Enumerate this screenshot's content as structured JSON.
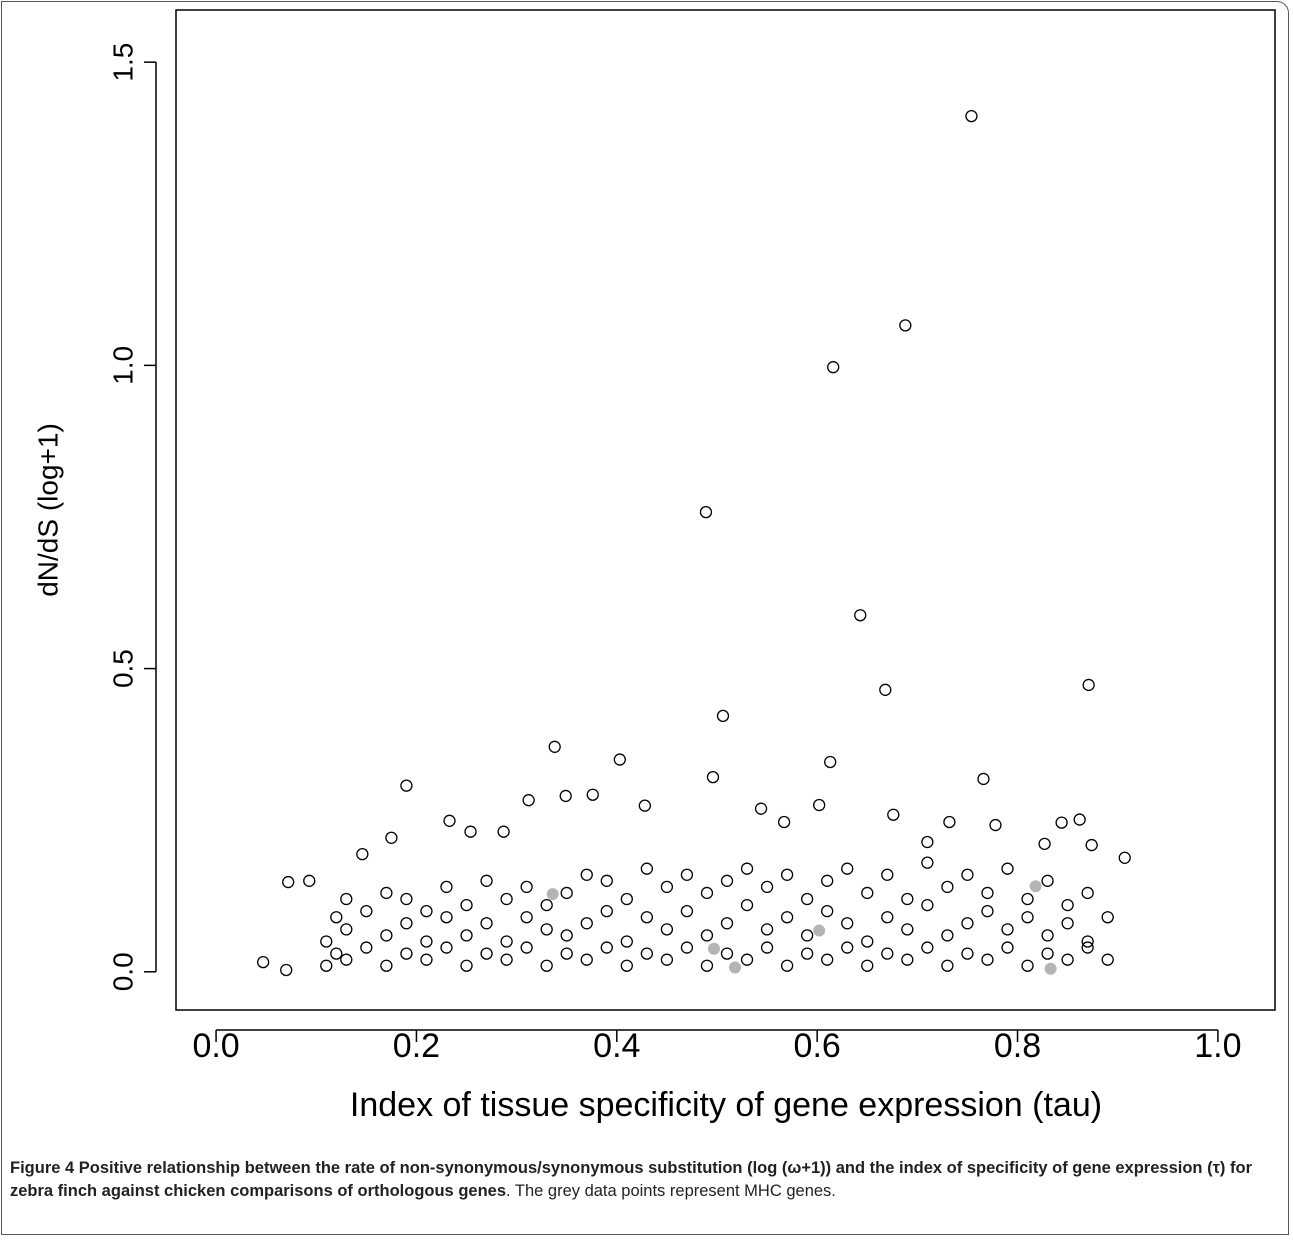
{
  "chart_data": {
    "type": "scatter",
    "xlabel": "Index of tissue specificity of gene expression (tau)",
    "ylabel": "dN/dS (log+1)",
    "xlim": [
      -0.04,
      1.057
    ],
    "ylim": [
      -0.063,
      1.586
    ],
    "xticks": [
      {
        "value": 0,
        "label": "0.0"
      },
      0.2,
      0.4,
      0.6,
      0.8,
      {
        "value": 1,
        "label": "1.0"
      }
    ],
    "yticks": [
      {
        "value": 0,
        "label": "0.0"
      },
      0.5,
      {
        "value": 1,
        "label": "1.0"
      },
      1.5
    ],
    "series": [
      {
        "color": "#000000",
        "filled": false,
        "x": [
          0.754,
          0.688,
          0.616,
          0.489,
          0.643,
          0.668,
          0.871,
          0.506,
          0.338,
          0.403,
          0.613,
          0.19,
          0.496,
          0.766,
          0.312,
          0.349,
          0.602,
          0.544,
          0.676,
          0.732,
          0.844,
          0.907,
          0.827,
          0.233,
          0.254,
          0.287,
          0.175,
          0.146,
          0.072,
          0.047,
          0.07,
          0.093,
          0.874,
          0.862,
          0.778,
          0.71,
          0.567,
          0.428,
          0.376,
          0.11,
          0.11,
          0.12,
          0.12,
          0.13,
          0.13,
          0.13,
          0.15,
          0.15,
          0.17,
          0.17,
          0.17,
          0.19,
          0.19,
          0.19,
          0.21,
          0.21,
          0.21,
          0.23,
          0.23,
          0.23,
          0.25,
          0.25,
          0.25,
          0.27,
          0.27,
          0.27,
          0.29,
          0.29,
          0.29,
          0.31,
          0.31,
          0.31,
          0.33,
          0.33,
          0.33,
          0.35,
          0.35,
          0.35,
          0.37,
          0.37,
          0.37,
          0.39,
          0.39,
          0.39,
          0.41,
          0.41,
          0.41,
          0.43,
          0.43,
          0.43,
          0.45,
          0.45,
          0.45,
          0.47,
          0.47,
          0.47,
          0.49,
          0.49,
          0.49,
          0.51,
          0.51,
          0.51,
          0.53,
          0.53,
          0.53,
          0.55,
          0.55,
          0.55,
          0.57,
          0.57,
          0.57,
          0.59,
          0.59,
          0.59,
          0.61,
          0.61,
          0.61,
          0.63,
          0.63,
          0.63,
          0.65,
          0.65,
          0.65,
          0.67,
          0.67,
          0.67,
          0.69,
          0.69,
          0.69,
          0.71,
          0.71,
          0.71,
          0.73,
          0.73,
          0.73,
          0.75,
          0.75,
          0.75,
          0.77,
          0.77,
          0.77,
          0.79,
          0.79,
          0.79,
          0.81,
          0.81,
          0.81,
          0.83,
          0.83,
          0.83,
          0.85,
          0.85,
          0.85,
          0.87,
          0.87,
          0.87,
          0.89,
          0.89
        ],
        "values": [
          1.411,
          1.066,
          0.997,
          0.758,
          0.588,
          0.465,
          0.473,
          0.422,
          0.371,
          0.35,
          0.346,
          0.307,
          0.321,
          0.318,
          0.283,
          0.29,
          0.275,
          0.269,
          0.259,
          0.247,
          0.246,
          0.188,
          0.211,
          0.249,
          0.231,
          0.231,
          0.221,
          0.194,
          0.148,
          0.016,
          0.003,
          0.15,
          0.209,
          0.251,
          0.242,
          0.214,
          0.247,
          0.274,
          0.292,
          0.01,
          0.05,
          0.03,
          0.09,
          0.02,
          0.07,
          0.12,
          0.04,
          0.1,
          0.01,
          0.06,
          0.13,
          0.03,
          0.08,
          0.12,
          0.02,
          0.05,
          0.1,
          0.04,
          0.09,
          0.14,
          0.01,
          0.06,
          0.11,
          0.03,
          0.08,
          0.15,
          0.02,
          0.05,
          0.12,
          0.04,
          0.09,
          0.14,
          0.01,
          0.07,
          0.11,
          0.03,
          0.06,
          0.13,
          0.02,
          0.08,
          0.16,
          0.04,
          0.1,
          0.15,
          0.01,
          0.05,
          0.12,
          0.03,
          0.09,
          0.17,
          0.02,
          0.07,
          0.14,
          0.04,
          0.1,
          0.16,
          0.01,
          0.06,
          0.13,
          0.03,
          0.08,
          0.15,
          0.02,
          0.11,
          0.17,
          0.04,
          0.07,
          0.14,
          0.01,
          0.09,
          0.16,
          0.03,
          0.06,
          0.12,
          0.02,
          0.1,
          0.15,
          0.04,
          0.08,
          0.17,
          0.01,
          0.05,
          0.13,
          0.03,
          0.09,
          0.16,
          0.02,
          0.07,
          0.12,
          0.04,
          0.11,
          0.18,
          0.01,
          0.06,
          0.14,
          0.03,
          0.08,
          0.16,
          0.02,
          0.1,
          0.13,
          0.04,
          0.07,
          0.17,
          0.01,
          0.09,
          0.12,
          0.03,
          0.06,
          0.15,
          0.02,
          0.08,
          0.11,
          0.04,
          0.05,
          0.13,
          0.02,
          0.09
        ]
      },
      {
        "color": "#b4b4b4",
        "filled": true,
        "x": [
          0.336,
          0.497,
          0.518,
          0.602,
          0.818,
          0.833
        ],
        "values": [
          0.128,
          0.038,
          0.007,
          0.068,
          0.141,
          0.005
        ]
      }
    ]
  },
  "caption": {
    "bold": "Figure 4 Positive relationship between the rate of non-synonymous/synonymous substitution (log (ω+1)) and the index of specificity of gene expression (τ) for zebra finch against chicken comparisons of orthologous genes",
    "text": ". The grey data points represent MHC genes."
  }
}
